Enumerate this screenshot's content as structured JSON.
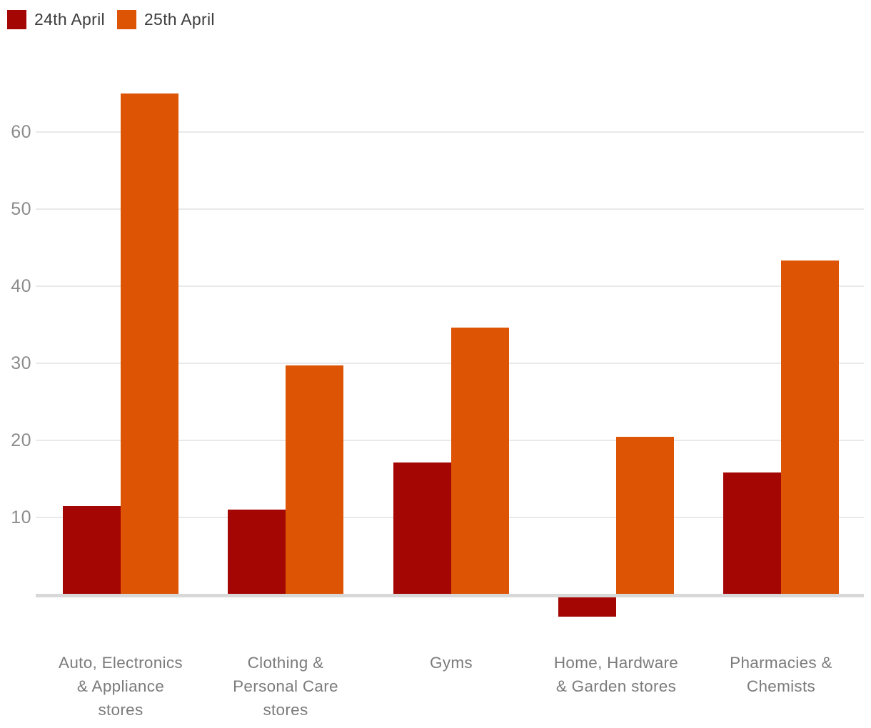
{
  "legend": {
    "items": [
      {
        "label": "24th April",
        "color": "#a30603"
      },
      {
        "label": "25th April",
        "color": "#dc5404"
      }
    ]
  },
  "chart_data": {
    "type": "bar",
    "title": "",
    "xlabel": "",
    "ylabel": "",
    "categories": [
      "Auto, Electronics & Appliance stores",
      "Clothing & Personal Care stores",
      "Gyms",
      "Home, Hardware & Garden stores",
      "Pharmacies & Chemists"
    ],
    "categories_lines": [
      [
        "Auto, Electronics",
        "& Appliance",
        "stores"
      ],
      [
        "Clothing &",
        "Personal Care",
        "stores"
      ],
      [
        "Gyms"
      ],
      [
        "Home, Hardware",
        "& Garden stores"
      ],
      [
        "Pharmacies &",
        "Chemists"
      ]
    ],
    "series": [
      {
        "name": "24th April",
        "color": "#a30603",
        "values": [
          11.5,
          11,
          17.1,
          -2.5,
          15.8
        ]
      },
      {
        "name": "25th April",
        "color": "#dc5404",
        "values": [
          65,
          29.7,
          34.6,
          20.5,
          43.3
        ]
      }
    ],
    "y_ticks": [
      10,
      20,
      30,
      40,
      50,
      60
    ],
    "ylim": [
      -5,
      68
    ],
    "grid": "horizontal",
    "legend_position": "top-left",
    "colors": {
      "grid": "#e9e9e9",
      "baseline": "#d8d8d8",
      "tick_label": "#8b8b8b",
      "category_label": "#7b7b7b",
      "legend_label": "#3d3d3d",
      "background": "#ffffff"
    }
  }
}
